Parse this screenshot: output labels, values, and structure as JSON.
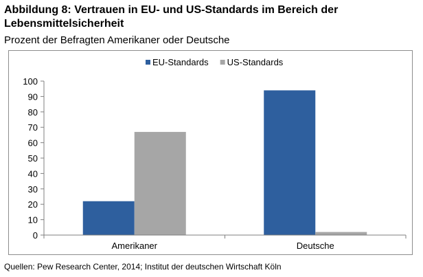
{
  "header": {
    "title": "Abbildung 8: Vertrauen in EU- und US-Standards im Bereich der Lebensmittelsicherheit",
    "subtitle": "Prozent der Befragten Amerikaner oder Deutsche"
  },
  "footer": {
    "source": "Quellen: Pew Research Center, 2014; Institut der deutschen Wirtschaft Köln"
  },
  "chart_data": {
    "type": "bar",
    "categories": [
      "Amerikaner",
      "Deutsche"
    ],
    "series": [
      {
        "name": "EU-Standards",
        "values": [
          22,
          94
        ],
        "color": "#2e5f9e"
      },
      {
        "name": "US-Standards",
        "values": [
          67,
          2
        ],
        "color": "#a6a6a6"
      }
    ],
    "ylim": [
      0,
      100
    ],
    "yticks": [
      0,
      10,
      20,
      30,
      40,
      50,
      60,
      70,
      80,
      90,
      100
    ],
    "grid": false,
    "legend": "top-center"
  }
}
